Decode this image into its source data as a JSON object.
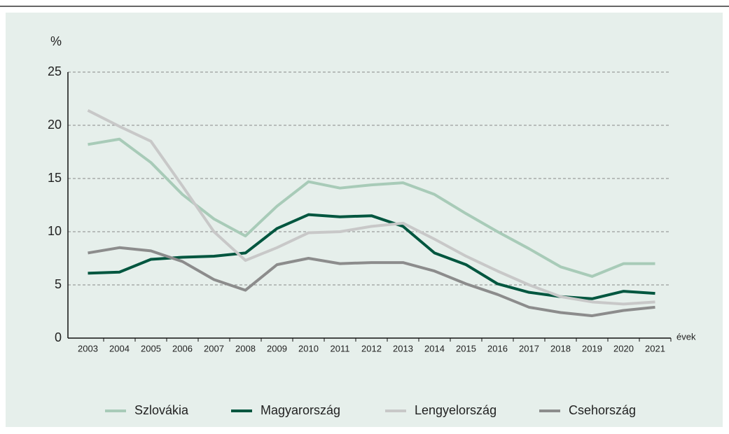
{
  "chart_data": {
    "type": "line",
    "y_label": "%",
    "x_label": "évek",
    "categories": [
      "2003",
      "2004",
      "2005",
      "2006",
      "2007",
      "2008",
      "2009",
      "2010",
      "2011",
      "2012",
      "2013",
      "2014",
      "2015",
      "2016",
      "2017",
      "2018",
      "2019",
      "2020",
      "2021"
    ],
    "series": [
      {
        "name": "Szlovákia",
        "color": "#a8cbb8",
        "values": [
          18.2,
          18.7,
          16.5,
          13.5,
          11.2,
          9.6,
          12.4,
          14.7,
          14.1,
          14.4,
          14.6,
          13.5,
          11.7,
          10.0,
          8.4,
          6.7,
          5.8,
          7.0,
          7.0
        ]
      },
      {
        "name": "Magyarország",
        "color": "#00563f",
        "values": [
          6.1,
          6.2,
          7.4,
          7.6,
          7.7,
          8.0,
          10.3,
          11.6,
          11.4,
          11.5,
          10.5,
          8.0,
          6.9,
          5.1,
          4.3,
          3.9,
          3.7,
          4.4,
          4.2
        ]
      },
      {
        "name": "Lengyelország",
        "color": "#c8c8c8",
        "values": [
          21.4,
          19.9,
          18.5,
          14.3,
          10.0,
          7.3,
          8.5,
          9.9,
          10.0,
          10.5,
          10.8,
          9.3,
          7.7,
          6.3,
          5.0,
          3.9,
          3.4,
          3.2,
          3.4
        ]
      },
      {
        "name": "Csehország",
        "color": "#8c8c8c",
        "values": [
          8.0,
          8.5,
          8.2,
          7.2,
          5.5,
          4.5,
          6.9,
          7.5,
          7.0,
          7.1,
          7.1,
          6.3,
          5.1,
          4.1,
          2.9,
          2.4,
          2.1,
          2.6,
          2.9
        ]
      }
    ],
    "ylim": [
      0,
      25
    ],
    "yticks": [
      0,
      5,
      10,
      15,
      20,
      25
    ],
    "grid": true,
    "legend": "bottom"
  }
}
